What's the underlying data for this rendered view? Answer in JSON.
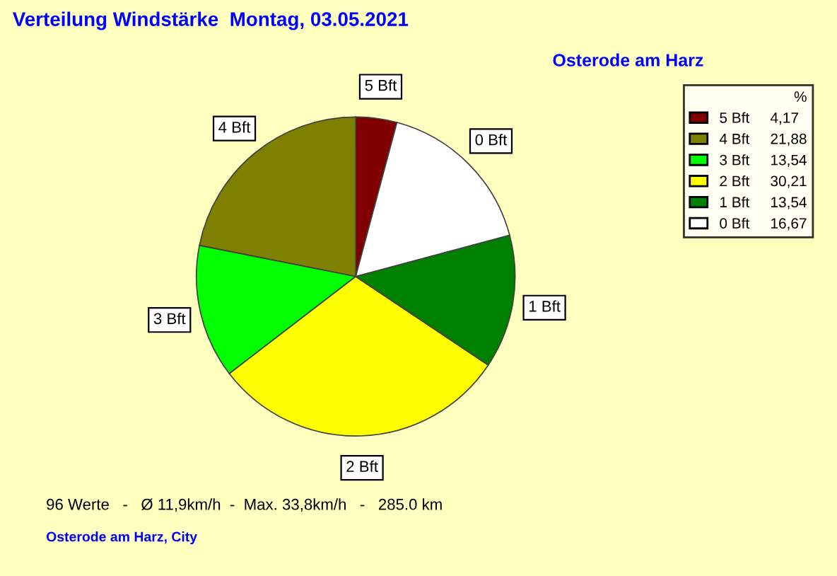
{
  "chart_data": {
    "type": "pie",
    "title": "Verteilung Windstärke  Montag, 03.05.2021",
    "subtitle": "Osterode am Harz",
    "categories": [
      "5 Bft",
      "4 Bft",
      "3 Bft",
      "2 Bft",
      "1 Bft",
      "0 Bft"
    ],
    "values": [
      4.17,
      21.88,
      13.54,
      30.21,
      13.54,
      16.67
    ],
    "value_labels": [
      "4,17",
      "21,88",
      "13,54",
      "30,21",
      "13,54",
      "16,67"
    ],
    "colors": [
      "#800000",
      "#808000",
      "#00ff00",
      "#ffff00",
      "#008000",
      "#ffffff"
    ],
    "legend_title": "%",
    "legend": "top right",
    "annotations": [
      "96 Werte   -   Ø 11,9km/h  -  Max. 33,8km/h   -   285.0 km",
      "Osterode am Harz, City"
    ]
  }
}
